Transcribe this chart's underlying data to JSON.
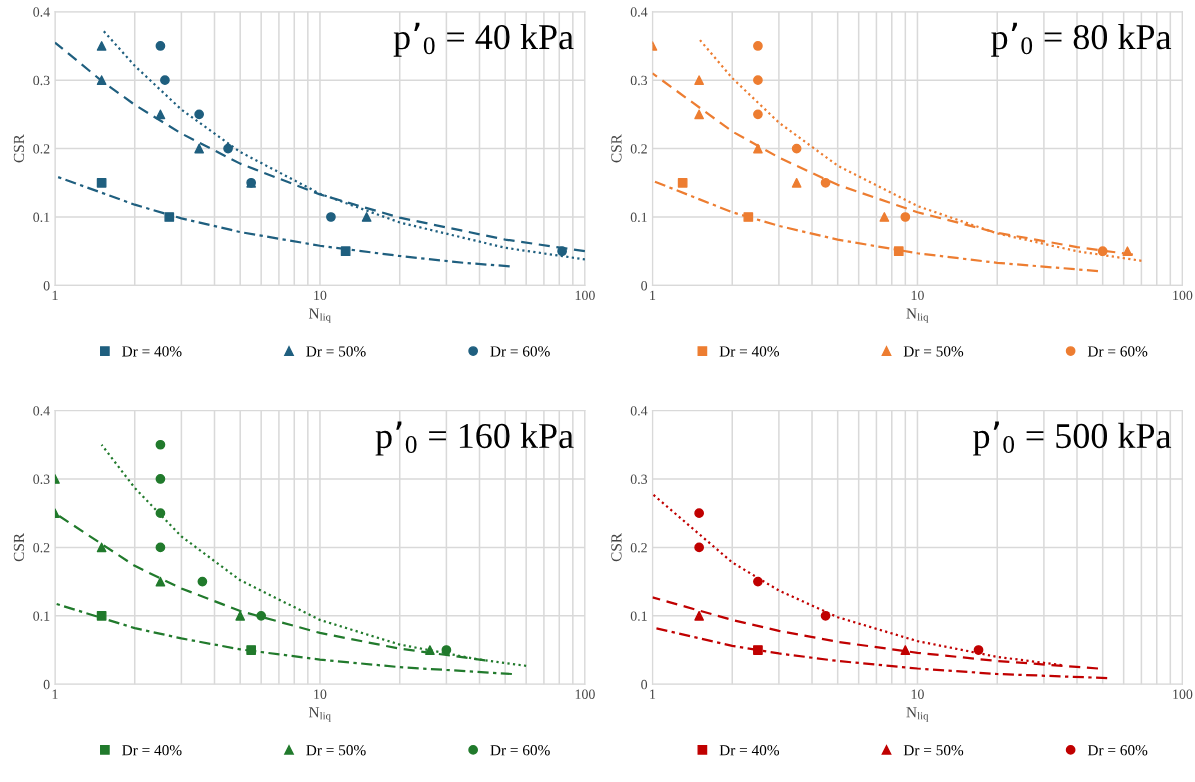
{
  "chart_data": [
    {
      "type": "scatter",
      "title": "p’$_{0}$ = 40 kPa",
      "xlabel": "N$_{liq}$",
      "ylabel": "CSR",
      "log": "x",
      "xlim": [
        1,
        100
      ],
      "ylim": [
        0,
        0.4
      ],
      "xticks": [
        1,
        {
          "value": 2,
          "label": null
        },
        {
          "value": 3,
          "label": null
        },
        {
          "value": 4,
          "label": null
        },
        {
          "value": 5,
          "label": null
        },
        {
          "value": 6,
          "label": null
        },
        {
          "value": 7,
          "label": null
        },
        {
          "value": 8,
          "label": null
        },
        {
          "value": 9,
          "label": null
        },
        10,
        {
          "value": 20,
          "label": null
        },
        {
          "value": 30,
          "label": null
        },
        {
          "value": 40,
          "label": null
        },
        {
          "value": 50,
          "label": null
        },
        {
          "value": 60,
          "label": null
        },
        {
          "value": 70,
          "label": null
        },
        {
          "value": 80,
          "label": null
        },
        {
          "value": 90,
          "label": null
        },
        100
      ],
      "yticks": [
        0,
        0.1,
        0.2,
        0.3,
        0.4
      ],
      "grid": true,
      "legend": "bottom",
      "series": [
        {
          "name": "Dr = 40%",
          "marker": "square",
          "color": "#1f5f7f",
          "x": [
            1.5,
            2.7,
            12.5
          ],
          "values": [
            0.15,
            0.1,
            0.05
          ]
        },
        {
          "name": "Dr = 50%",
          "marker": "triangle",
          "color": "#1f5f7f",
          "x": [
            1.5,
            1.5,
            2.5,
            3.5,
            5.5,
            15
          ],
          "values": [
            0.35,
            0.3,
            0.25,
            0.2,
            0.15,
            0.1
          ]
        },
        {
          "name": "Dr = 60%",
          "marker": "circle",
          "color": "#1f5f7f",
          "x": [
            2.5,
            2.6,
            3.5,
            4.5,
            5.5,
            11,
            82
          ],
          "values": [
            0.35,
            0.3,
            0.25,
            0.2,
            0.15,
            0.1,
            0.05
          ]
        },
        {
          "type": "line",
          "line_style": "dashdot",
          "color": "#1f5f7f",
          "x": [
            1,
            2,
            3,
            5,
            10,
            20,
            35,
            52
          ],
          "values": [
            0.16,
            0.118,
            0.098,
            0.078,
            0.058,
            0.043,
            0.033,
            0.028
          ]
        },
        {
          "type": "line",
          "line_style": "dashed",
          "color": "#1f5f7f",
          "x": [
            1,
            1.5,
            2,
            3,
            5,
            10,
            20,
            50,
            100
          ],
          "values": [
            0.355,
            0.299,
            0.264,
            0.222,
            0.178,
            0.133,
            0.099,
            0.067,
            0.05
          ]
        },
        {
          "type": "line",
          "line_style": "dotted",
          "color": "#1f5f7f",
          "x": [
            1.5,
            2,
            3,
            5,
            10,
            20,
            50,
            100
          ],
          "values": [
            0.375,
            0.321,
            0.257,
            0.195,
            0.134,
            0.092,
            0.055,
            0.038
          ]
        }
      ]
    },
    {
      "type": "scatter",
      "title": "p’$_{0}$ = 80 kPa",
      "xlabel": "N$_{liq}$",
      "ylabel": "CSR",
      "log": "x",
      "xlim": [
        1,
        100
      ],
      "ylim": [
        0,
        0.4
      ],
      "xticks": [
        1,
        {
          "value": 2,
          "label": null
        },
        {
          "value": 3,
          "label": null
        },
        {
          "value": 4,
          "label": null
        },
        {
          "value": 5,
          "label": null
        },
        {
          "value": 6,
          "label": null
        },
        {
          "value": 7,
          "label": null
        },
        {
          "value": 8,
          "label": null
        },
        {
          "value": 9,
          "label": null
        },
        10,
        {
          "value": 20,
          "label": null
        },
        {
          "value": 30,
          "label": null
        },
        {
          "value": 40,
          "label": null
        },
        {
          "value": 50,
          "label": null
        },
        {
          "value": 60,
          "label": null
        },
        {
          "value": 70,
          "label": null
        },
        {
          "value": 80,
          "label": null
        },
        {
          "value": 90,
          "label": null
        },
        100
      ],
      "yticks": [
        0,
        0.1,
        0.2,
        0.3,
        0.4
      ],
      "grid": true,
      "legend": "bottom",
      "series": [
        {
          "name": "Dr = 40%",
          "marker": "square",
          "color": "#ed7d31",
          "x": [
            1.3,
            2.3,
            8.5
          ],
          "values": [
            0.15,
            0.1,
            0.05
          ]
        },
        {
          "name": "Dr = 50%",
          "marker": "triangle",
          "color": "#ed7d31",
          "x": [
            1,
            1.5,
            1.5,
            2.5,
            3.5,
            7.5,
            62
          ],
          "values": [
            0.35,
            0.3,
            0.25,
            0.2,
            0.15,
            0.1,
            0.05
          ]
        },
        {
          "name": "Dr = 60%",
          "marker": "circle",
          "color": "#ed7d31",
          "x": [
            2.5,
            2.5,
            2.5,
            3.5,
            4.5,
            9,
            50
          ],
          "values": [
            0.35,
            0.3,
            0.25,
            0.2,
            0.15,
            0.1,
            0.05
          ]
        },
        {
          "type": "line",
          "line_style": "dashdot",
          "color": "#ed7d31",
          "x": [
            1,
            2,
            3,
            5,
            10,
            20,
            48
          ],
          "values": [
            0.153,
            0.107,
            0.087,
            0.067,
            0.047,
            0.033,
            0.021
          ]
        },
        {
          "type": "line",
          "line_style": "dashed",
          "color": "#ed7d31",
          "x": [
            1,
            2,
            3,
            5,
            10,
            20,
            40,
            65
          ],
          "values": [
            0.31,
            0.225,
            0.187,
            0.147,
            0.107,
            0.077,
            0.056,
            0.045
          ]
        },
        {
          "type": "line",
          "line_style": "dotted",
          "color": "#ed7d31",
          "x": [
            1.5,
            2,
            3,
            5,
            10,
            20,
            40,
            70
          ],
          "values": [
            0.36,
            0.303,
            0.238,
            0.175,
            0.116,
            0.076,
            0.05,
            0.036
          ]
        }
      ]
    },
    {
      "type": "scatter",
      "title": "p’$_{0}$ = 160 kPa",
      "xlabel": "N$_{liq}$",
      "ylabel": "CSR",
      "log": "x",
      "xlim": [
        1,
        100
      ],
      "ylim": [
        0,
        0.4
      ],
      "xticks": [
        1,
        {
          "value": 2,
          "label": null
        },
        {
          "value": 3,
          "label": null
        },
        {
          "value": 4,
          "label": null
        },
        {
          "value": 5,
          "label": null
        },
        {
          "value": 6,
          "label": null
        },
        {
          "value": 7,
          "label": null
        },
        {
          "value": 8,
          "label": null
        },
        {
          "value": 9,
          "label": null
        },
        10,
        {
          "value": 20,
          "label": null
        },
        {
          "value": 30,
          "label": null
        },
        {
          "value": 40,
          "label": null
        },
        {
          "value": 50,
          "label": null
        },
        {
          "value": 60,
          "label": null
        },
        {
          "value": 70,
          "label": null
        },
        {
          "value": 80,
          "label": null
        },
        {
          "value": 90,
          "label": null
        },
        100
      ],
      "yticks": [
        0,
        0.1,
        0.2,
        0.3,
        0.4
      ],
      "grid": true,
      "legend": "bottom",
      "series": [
        {
          "name": "Dr = 40%",
          "marker": "square",
          "color": "#217a2c",
          "x": [
            1.5,
            5.5
          ],
          "values": [
            0.1,
            0.05
          ]
        },
        {
          "name": "Dr = 50%",
          "marker": "triangle",
          "color": "#217a2c",
          "x": [
            1,
            1,
            1.5,
            2.5,
            5,
            26
          ],
          "values": [
            0.3,
            0.25,
            0.2,
            0.15,
            0.1,
            0.05
          ]
        },
        {
          "name": "Dr = 60%",
          "marker": "circle",
          "color": "#217a2c",
          "x": [
            2.5,
            2.5,
            2.5,
            2.5,
            3.6,
            6,
            30
          ],
          "values": [
            0.35,
            0.3,
            0.25,
            0.2,
            0.15,
            0.1,
            0.05
          ]
        },
        {
          "type": "line",
          "line_style": "dashdot",
          "color": "#217a2c",
          "x": [
            1,
            2,
            3,
            5,
            10,
            20,
            53
          ],
          "values": [
            0.118,
            0.082,
            0.067,
            0.051,
            0.036,
            0.025,
            0.015
          ]
        },
        {
          "type": "line",
          "line_style": "dashed",
          "color": "#217a2c",
          "x": [
            1,
            2,
            3,
            5,
            10,
            20,
            42
          ],
          "values": [
            0.25,
            0.173,
            0.14,
            0.107,
            0.075,
            0.052,
            0.035
          ]
        },
        {
          "type": "line",
          "line_style": "dotted",
          "color": "#217a2c",
          "x": [
            1.5,
            2,
            3,
            5,
            10,
            20,
            40,
            60
          ],
          "values": [
            0.35,
            0.287,
            0.216,
            0.152,
            0.094,
            0.058,
            0.036,
            0.027
          ]
        }
      ]
    },
    {
      "type": "scatter",
      "title": "p’$_{0}$ = 500 kPa",
      "xlabel": "N$_{liq}$",
      "ylabel": "CSR",
      "log": "x",
      "xlim": [
        1,
        100
      ],
      "ylim": [
        0,
        0.4
      ],
      "xticks": [
        1,
        {
          "value": 2,
          "label": null
        },
        {
          "value": 3,
          "label": null
        },
        {
          "value": 4,
          "label": null
        },
        {
          "value": 5,
          "label": null
        },
        {
          "value": 6,
          "label": null
        },
        {
          "value": 7,
          "label": null
        },
        {
          "value": 8,
          "label": null
        },
        {
          "value": 9,
          "label": null
        },
        10,
        {
          "value": 20,
          "label": null
        },
        {
          "value": 30,
          "label": null
        },
        {
          "value": 40,
          "label": null
        },
        {
          "value": 50,
          "label": null
        },
        {
          "value": 60,
          "label": null
        },
        {
          "value": 70,
          "label": null
        },
        {
          "value": 80,
          "label": null
        },
        {
          "value": 90,
          "label": null
        },
        100
      ],
      "yticks": [
        0,
        0.1,
        0.2,
        0.3,
        0.4
      ],
      "grid": true,
      "legend": "bottom",
      "series": [
        {
          "name": "Dr = 40%",
          "marker": "square",
          "color": "#c00000",
          "x": [
            2.5
          ],
          "values": [
            0.05
          ]
        },
        {
          "name": "Dr = 50%",
          "marker": "triangle",
          "color": "#c00000",
          "x": [
            1.5,
            9
          ],
          "values": [
            0.1,
            0.05
          ]
        },
        {
          "name": "Dr = 60%",
          "marker": "circle",
          "color": "#c00000",
          "x": [
            1.5,
            1.5,
            2.5,
            4.5,
            17
          ],
          "values": [
            0.25,
            0.2,
            0.15,
            0.1,
            0.05
          ]
        },
        {
          "type": "line",
          "line_style": "dashdot",
          "color": "#c00000",
          "x": [
            1,
            2,
            3,
            5,
            10,
            20,
            52
          ],
          "values": [
            0.083,
            0.056,
            0.045,
            0.034,
            0.023,
            0.015,
            0.009
          ]
        },
        {
          "type": "line",
          "line_style": "dashed",
          "color": "#c00000",
          "x": [
            1,
            2,
            3,
            5,
            10,
            20,
            48
          ],
          "values": [
            0.127,
            0.094,
            0.078,
            0.062,
            0.046,
            0.034,
            0.023
          ]
        },
        {
          "type": "line",
          "line_style": "dotted",
          "color": "#c00000",
          "x": [
            1,
            2,
            3,
            5,
            10,
            20,
            35
          ],
          "values": [
            0.278,
            0.178,
            0.137,
            0.098,
            0.063,
            0.04,
            0.028
          ]
        }
      ]
    }
  ]
}
